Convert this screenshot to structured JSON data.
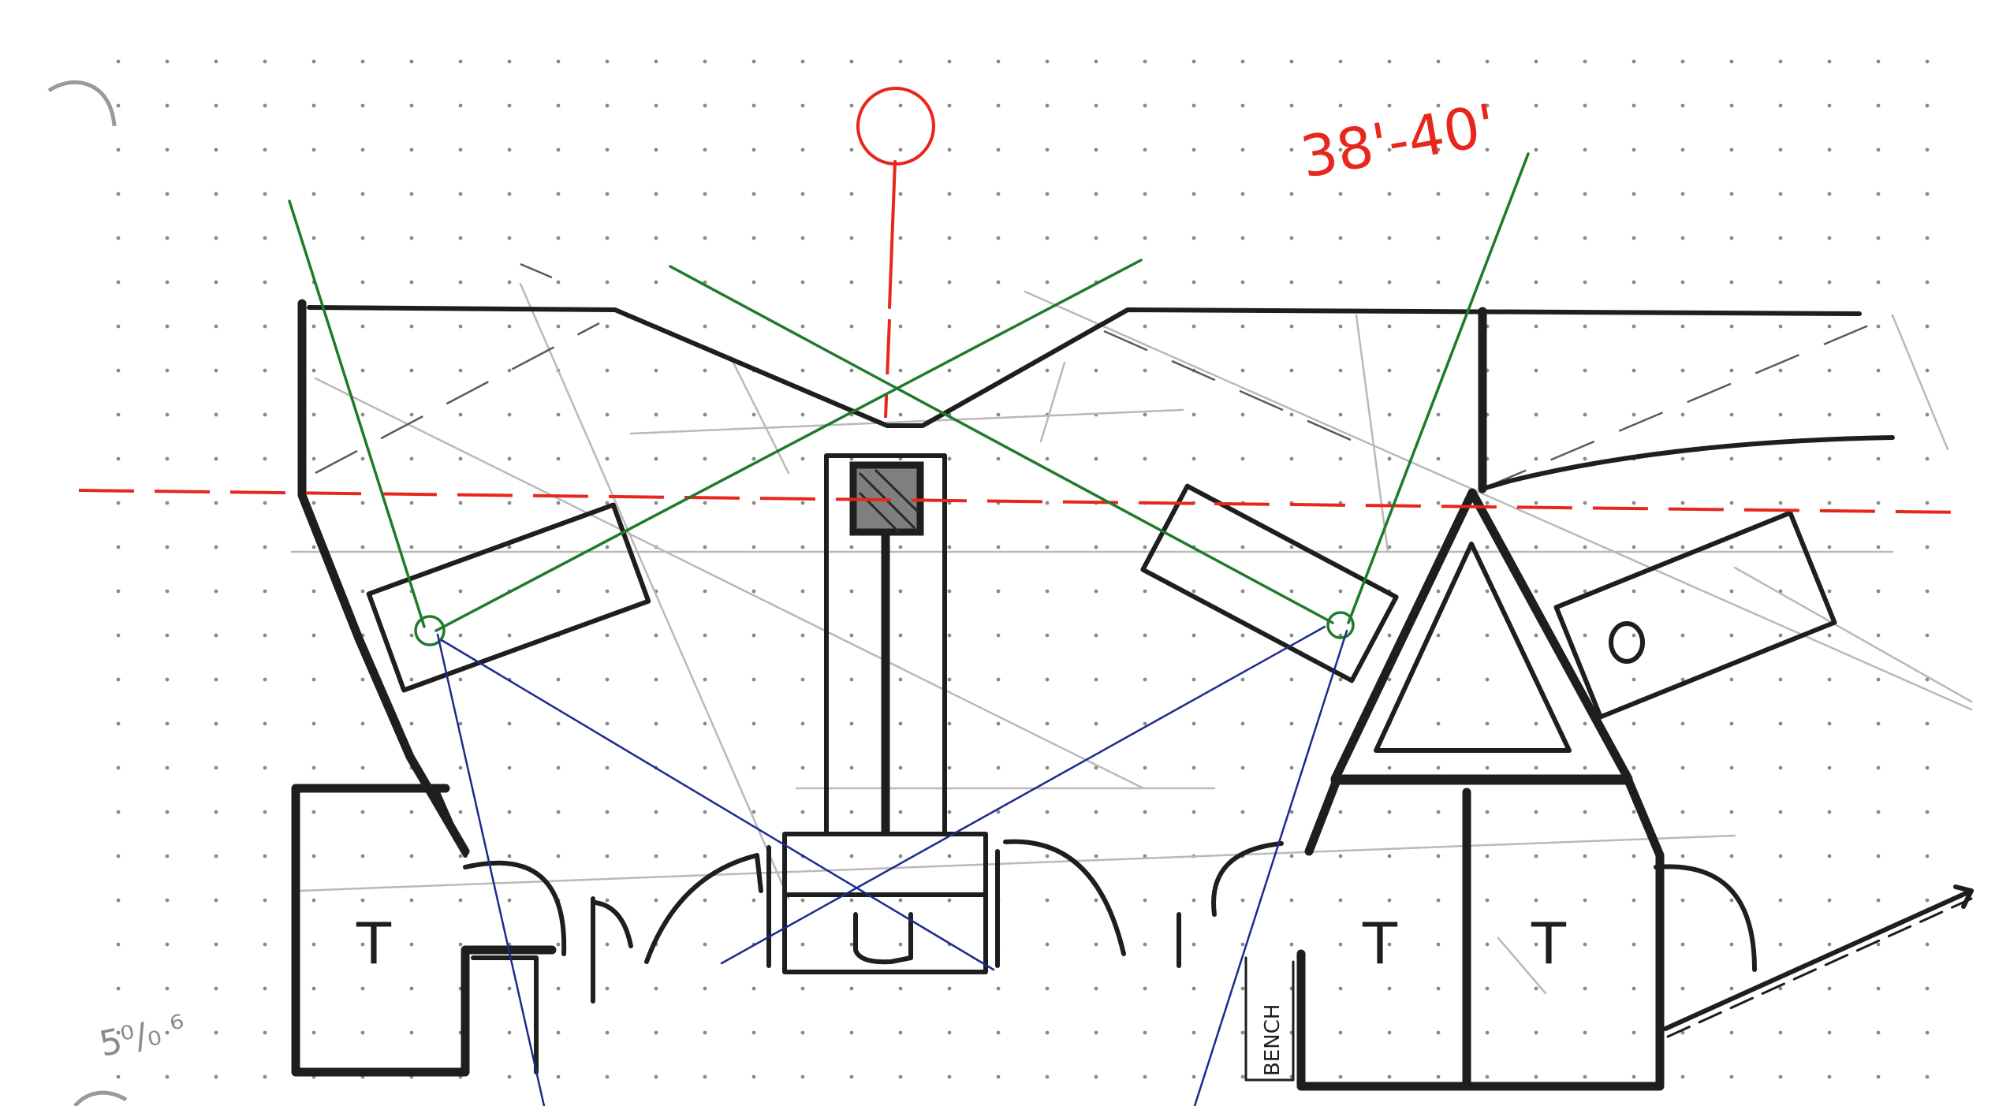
{
  "diagram": {
    "dimension_label": "38'-40'",
    "table_labels": [
      "T",
      "T",
      "T"
    ],
    "bench_label": "BENCH",
    "corner_note": "5⁰/₀ ⁶",
    "colors": {
      "ink": "#1e1e1e",
      "red": "#e8261c",
      "green": "#1f7a2a",
      "blue": "#1c2a8c",
      "pencil": "#b9b9b9"
    }
  }
}
